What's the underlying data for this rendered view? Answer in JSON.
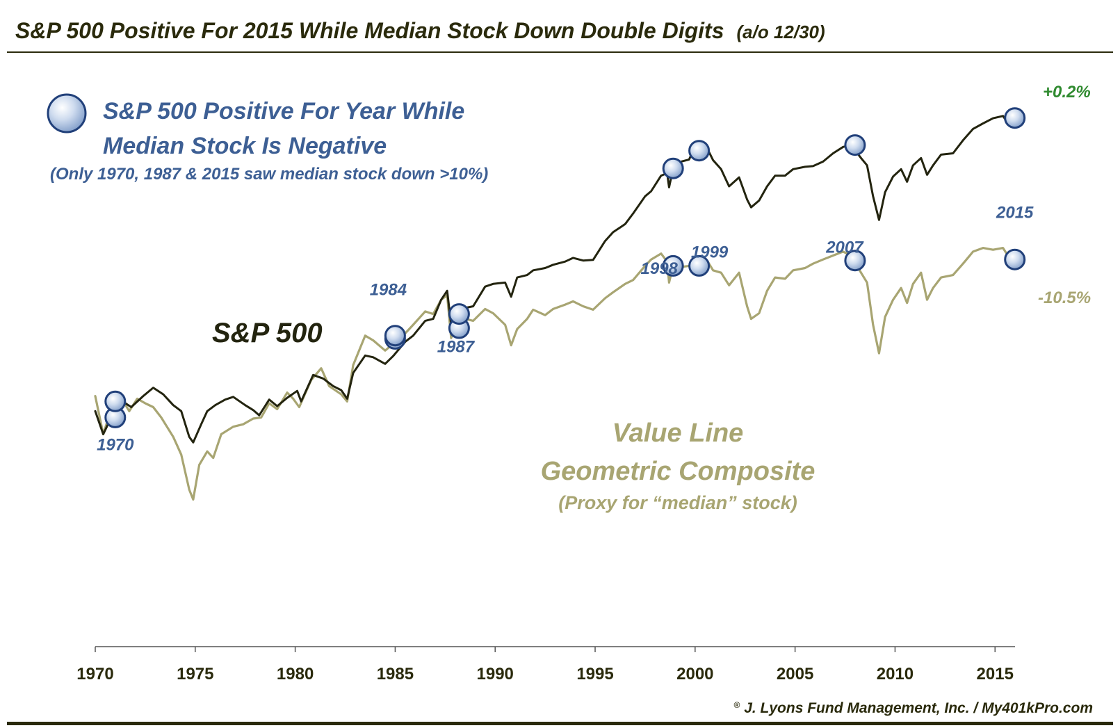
{
  "colors": {
    "sp500": "#23240f",
    "value_line": "#a8a572",
    "title": "#2a2a0c",
    "annotation": "#3d5f94",
    "positive": "#2f8a2f",
    "negative": "#a8a572",
    "rule": "#2a2a0c"
  },
  "chart_data": {
    "type": "line",
    "title": "S&P 500 Positive For 2015 While Median Stock Down Double Digits",
    "title_suffix": "(a/o 12/30)",
    "xlim": [
      1970,
      2016
    ],
    "x_ticks": [
      "1970",
      "1975",
      "1980",
      "1985",
      "1990",
      "1995",
      "2000",
      "2005",
      "2010",
      "2015"
    ],
    "y_scale": "log",
    "y_axis_visible": false,
    "series": [
      {
        "name": "S&P 500",
        "label": "S&P 500",
        "color": "#23240f",
        "points": [
          [
            1970.0,
            92
          ],
          [
            1970.4,
            72
          ],
          [
            1970.9,
            90
          ],
          [
            1971.3,
            103
          ],
          [
            1971.8,
            96
          ],
          [
            1972.4,
            108
          ],
          [
            1972.9,
            118
          ],
          [
            1973.4,
            110
          ],
          [
            1973.9,
            98
          ],
          [
            1974.3,
            92
          ],
          [
            1974.7,
            70
          ],
          [
            1974.9,
            66
          ],
          [
            1975.3,
            80
          ],
          [
            1975.6,
            92
          ],
          [
            1976.0,
            98
          ],
          [
            1976.5,
            104
          ],
          [
            1976.9,
            107
          ],
          [
            1977.5,
            98
          ],
          [
            1977.9,
            93
          ],
          [
            1978.2,
            88
          ],
          [
            1978.7,
            104
          ],
          [
            1979.1,
            97
          ],
          [
            1979.6,
            106
          ],
          [
            1980.1,
            114
          ],
          [
            1980.3,
            102
          ],
          [
            1980.9,
            135
          ],
          [
            1981.4,
            130
          ],
          [
            1981.9,
            120
          ],
          [
            1982.3,
            115
          ],
          [
            1982.6,
            105
          ],
          [
            1982.9,
            138
          ],
          [
            1983.5,
            166
          ],
          [
            1983.9,
            163
          ],
          [
            1984.5,
            152
          ],
          [
            1984.9,
            165
          ],
          [
            1985.5,
            192
          ],
          [
            1985.9,
            205
          ],
          [
            1986.5,
            240
          ],
          [
            1986.9,
            245
          ],
          [
            1987.3,
            300
          ],
          [
            1987.6,
            330
          ],
          [
            1987.8,
            230
          ],
          [
            1988.0,
            250
          ],
          [
            1988.5,
            275
          ],
          [
            1988.9,
            280
          ],
          [
            1989.5,
            345
          ],
          [
            1989.9,
            355
          ],
          [
            1990.5,
            360
          ],
          [
            1990.8,
            310
          ],
          [
            1991.1,
            380
          ],
          [
            1991.6,
            390
          ],
          [
            1991.9,
            410
          ],
          [
            1992.5,
            420
          ],
          [
            1992.9,
            435
          ],
          [
            1993.5,
            450
          ],
          [
            1993.9,
            468
          ],
          [
            1994.4,
            455
          ],
          [
            1994.9,
            458
          ],
          [
            1995.5,
            560
          ],
          [
            1995.9,
            615
          ],
          [
            1996.5,
            670
          ],
          [
            1996.9,
            750
          ],
          [
            1997.5,
            900
          ],
          [
            1997.8,
            950
          ],
          [
            1998.3,
            1120
          ],
          [
            1998.6,
            1150
          ],
          [
            1998.7,
            990
          ],
          [
            1998.9,
            1210
          ],
          [
            1999.3,
            1300
          ],
          [
            1999.7,
            1330
          ],
          [
            1999.9,
            1460
          ],
          [
            2000.2,
            1400
          ],
          [
            2000.6,
            1500
          ],
          [
            2000.9,
            1320
          ],
          [
            2001.3,
            1200
          ],
          [
            2001.7,
            1000
          ],
          [
            2002.2,
            1100
          ],
          [
            2002.6,
            870
          ],
          [
            2002.8,
            800
          ],
          [
            2003.2,
            860
          ],
          [
            2003.6,
            1000
          ],
          [
            2004.0,
            1120
          ],
          [
            2004.5,
            1120
          ],
          [
            2004.9,
            1200
          ],
          [
            2005.5,
            1230
          ],
          [
            2005.9,
            1240
          ],
          [
            2006.4,
            1300
          ],
          [
            2006.9,
            1420
          ],
          [
            2007.4,
            1520
          ],
          [
            2007.8,
            1550
          ],
          [
            2008.3,
            1350
          ],
          [
            2008.6,
            1250
          ],
          [
            2008.9,
            900
          ],
          [
            2009.2,
            700
          ],
          [
            2009.5,
            940
          ],
          [
            2009.9,
            1110
          ],
          [
            2010.3,
            1200
          ],
          [
            2010.6,
            1050
          ],
          [
            2010.9,
            1250
          ],
          [
            2011.3,
            1350
          ],
          [
            2011.6,
            1130
          ],
          [
            2011.9,
            1250
          ],
          [
            2012.3,
            1400
          ],
          [
            2012.9,
            1420
          ],
          [
            2013.4,
            1630
          ],
          [
            2013.9,
            1840
          ],
          [
            2014.4,
            1950
          ],
          [
            2014.9,
            2060
          ],
          [
            2015.4,
            2110
          ],
          [
            2015.7,
            1920
          ],
          [
            2015.99,
            2065
          ]
        ],
        "markers": [
          {
            "x": 1971.0,
            "y": 102,
            "label": "1970"
          },
          {
            "x": 1985.0,
            "y": 205,
            "label": "1984"
          },
          {
            "x": 1988.2,
            "y": 258,
            "label": "1987"
          },
          {
            "x": 1998.9,
            "y": 1210,
            "label": "1998"
          },
          {
            "x": 2000.2,
            "y": 1460,
            "label": "1999"
          },
          {
            "x": 2008.0,
            "y": 1550,
            "label": "2007"
          },
          {
            "x": 2015.99,
            "y": 2065,
            "label": "2015"
          }
        ],
        "end_label": "+0.2%"
      },
      {
        "name": "Value Line Geometric Composite",
        "label": "Value Line",
        "label2": "Geometric Composite",
        "sublabel": "(Proxy for “median” stock)",
        "color": "#a8a572",
        "points": [
          [
            1970.0,
            108
          ],
          [
            1970.4,
            72
          ],
          [
            1970.7,
            88
          ],
          [
            1971.3,
            106
          ],
          [
            1971.7,
            92
          ],
          [
            1972.1,
            105
          ],
          [
            1972.5,
            100
          ],
          [
            1972.9,
            96
          ],
          [
            1973.3,
            86
          ],
          [
            1973.9,
            70
          ],
          [
            1974.3,
            58
          ],
          [
            1974.7,
            40
          ],
          [
            1974.9,
            36
          ],
          [
            1975.2,
            52
          ],
          [
            1975.6,
            60
          ],
          [
            1975.9,
            56
          ],
          [
            1976.3,
            72
          ],
          [
            1976.9,
            78
          ],
          [
            1977.4,
            80
          ],
          [
            1977.9,
            85
          ],
          [
            1978.3,
            86
          ],
          [
            1978.7,
            100
          ],
          [
            1979.1,
            94
          ],
          [
            1979.6,
            112
          ],
          [
            1979.9,
            105
          ],
          [
            1980.2,
            96
          ],
          [
            1980.8,
            128
          ],
          [
            1981.3,
            145
          ],
          [
            1981.7,
            120
          ],
          [
            1982.3,
            110
          ],
          [
            1982.6,
            102
          ],
          [
            1982.9,
            150
          ],
          [
            1983.5,
            205
          ],
          [
            1983.9,
            195
          ],
          [
            1984.5,
            175
          ],
          [
            1984.9,
            188
          ],
          [
            1985.5,
            210
          ],
          [
            1985.9,
            230
          ],
          [
            1986.5,
            265
          ],
          [
            1986.9,
            258
          ],
          [
            1987.3,
            300
          ],
          [
            1987.6,
            315
          ],
          [
            1987.8,
            200
          ],
          [
            1988.0,
            222
          ],
          [
            1988.5,
            245
          ],
          [
            1988.9,
            240
          ],
          [
            1989.5,
            272
          ],
          [
            1989.9,
            260
          ],
          [
            1990.5,
            230
          ],
          [
            1990.8,
            185
          ],
          [
            1991.1,
            220
          ],
          [
            1991.6,
            245
          ],
          [
            1991.9,
            270
          ],
          [
            1992.5,
            255
          ],
          [
            1992.9,
            272
          ],
          [
            1993.5,
            285
          ],
          [
            1993.9,
            295
          ],
          [
            1994.4,
            280
          ],
          [
            1994.9,
            270
          ],
          [
            1995.5,
            305
          ],
          [
            1995.9,
            325
          ],
          [
            1996.5,
            355
          ],
          [
            1996.9,
            370
          ],
          [
            1997.5,
            430
          ],
          [
            1997.8,
            460
          ],
          [
            1998.3,
            490
          ],
          [
            1998.6,
            450
          ],
          [
            1998.7,
            360
          ],
          [
            1998.9,
            430
          ],
          [
            1999.3,
            425
          ],
          [
            1999.7,
            430
          ],
          [
            1999.9,
            440
          ],
          [
            2000.2,
            440
          ],
          [
            2000.6,
            455
          ],
          [
            2000.9,
            410
          ],
          [
            2001.3,
            400
          ],
          [
            2001.7,
            350
          ],
          [
            2002.2,
            400
          ],
          [
            2002.6,
            280
          ],
          [
            2002.8,
            245
          ],
          [
            2003.2,
            260
          ],
          [
            2003.6,
            330
          ],
          [
            2004.0,
            380
          ],
          [
            2004.5,
            375
          ],
          [
            2004.9,
            410
          ],
          [
            2005.5,
            420
          ],
          [
            2005.9,
            440
          ],
          [
            2006.4,
            460
          ],
          [
            2006.9,
            480
          ],
          [
            2007.4,
            500
          ],
          [
            2007.8,
            480
          ],
          [
            2008.3,
            400
          ],
          [
            2008.6,
            360
          ],
          [
            2008.9,
            230
          ],
          [
            2009.2,
            170
          ],
          [
            2009.5,
            250
          ],
          [
            2009.9,
            300
          ],
          [
            2010.3,
            340
          ],
          [
            2010.6,
            290
          ],
          [
            2010.9,
            355
          ],
          [
            2011.3,
            400
          ],
          [
            2011.6,
            300
          ],
          [
            2011.9,
            340
          ],
          [
            2012.3,
            380
          ],
          [
            2012.9,
            390
          ],
          [
            2013.4,
            440
          ],
          [
            2013.9,
            500
          ],
          [
            2014.4,
            520
          ],
          [
            2014.9,
            510
          ],
          [
            2015.4,
            520
          ],
          [
            2015.7,
            470
          ],
          [
            2015.99,
            460
          ]
        ],
        "markers": [
          {
            "x": 1971.0,
            "y": 86
          },
          {
            "x": 1985.0,
            "y": 198
          },
          {
            "x": 1988.2,
            "y": 222
          },
          {
            "x": 1998.9,
            "y": 430
          },
          {
            "x": 2000.2,
            "y": 430
          },
          {
            "x": 2008.0,
            "y": 455
          },
          {
            "x": 2015.99,
            "y": 460
          }
        ],
        "end_label": "-10.5%"
      }
    ],
    "legend": {
      "line1": "S&P 500 Positive For Year While",
      "line2": "Median Stock Is Negative",
      "note": "(Only 1970, 1987 & 2015 saw median stock down >10%)",
      "position": "top-left"
    },
    "credit": "J. Lyons Fund Management, Inc. / My401kPro.com",
    "credit_mark": "®"
  }
}
